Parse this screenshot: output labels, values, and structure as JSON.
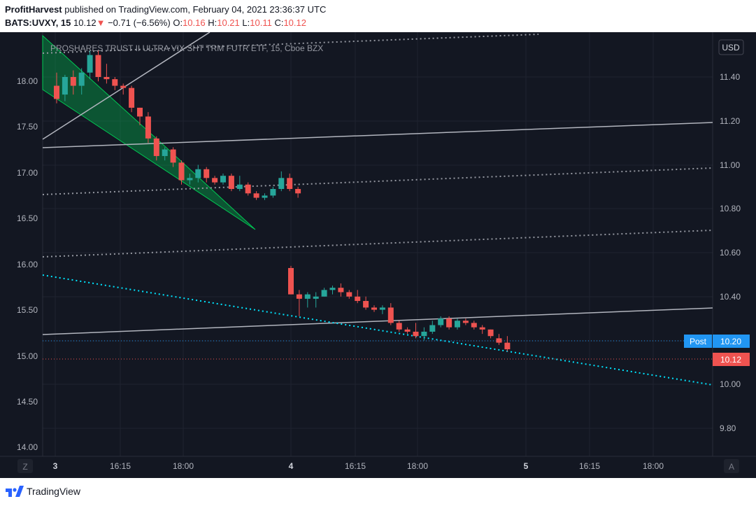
{
  "header": {
    "author": "ProfitHarvest",
    "published_text": "published on TradingView.com, February 04, 2021 23:36:37 UTC",
    "symbol": "BATS:UVXY, 15",
    "last": "10.12",
    "arrow": "▼",
    "change": "−0.71 (−6.56%)",
    "o_label": "O:",
    "o_val": "10.16",
    "h_label": "H:",
    "h_val": "10.21",
    "l_label": "L:",
    "l_val": "10.11",
    "c_label": "C:",
    "c_val": "10.12"
  },
  "chart_title": "PROSHARES TRUST II ULTRA VIX SHT TRM FUTR ETF, 15, Cboe BZX",
  "currency_button": "USD",
  "footer": {
    "brand": "TradingView"
  },
  "left_axis": {
    "ticks": [
      "18.00",
      "17.50",
      "17.00",
      "16.50",
      "16.00",
      "15.50",
      "15.00",
      "14.50",
      "14.00"
    ]
  },
  "right_axis": {
    "ticks": [
      "11.40",
      "11.20",
      "11.00",
      "10.80",
      "10.60",
      "10.40",
      "10.20",
      "10.00",
      "9.80"
    ]
  },
  "time_axis": {
    "ticks": [
      "3",
      "16:15",
      "18:00",
      "4",
      "16:15",
      "18:00",
      "5",
      "16:15",
      "18:00"
    ]
  },
  "corner_left": "Z",
  "corner_right": "A",
  "price_labels": {
    "post_tag": "Post",
    "post_value": "10.20",
    "last_value": "10.12"
  },
  "colors": {
    "up": "#26a69a",
    "down": "#ef5350",
    "bg": "#131722",
    "grid": "#1f2330",
    "axis_text": "#b2b5be",
    "trend": "#b2b5be",
    "cyan": "#00e5ff",
    "channel": "#00c853",
    "post": "#2196f3"
  },
  "chart_data": {
    "type": "candlestick",
    "title": "PROSHARES TRUST II ULTRA VIX SHT TRM FUTR ETF, 15, Cboe BZX",
    "symbol": "BATS:UVXY",
    "interval": "15",
    "price_scale_right": [
      9.75,
      11.5
    ],
    "price_scale_left": [
      13.9,
      18.3
    ],
    "candles": [
      [
        11.36,
        11.42,
        11.28,
        11.3
      ],
      [
        11.32,
        11.41,
        11.29,
        11.4
      ],
      [
        11.4,
        11.43,
        11.32,
        11.36
      ],
      [
        11.36,
        11.44,
        11.32,
        11.42
      ],
      [
        11.42,
        11.52,
        11.39,
        11.5
      ],
      [
        11.5,
        11.52,
        11.38,
        11.4
      ],
      [
        11.4,
        11.46,
        11.37,
        11.39
      ],
      [
        11.39,
        11.4,
        11.34,
        11.36
      ],
      [
        11.36,
        11.37,
        11.32,
        11.35
      ],
      [
        11.35,
        11.36,
        11.24,
        11.26
      ],
      [
        11.26,
        11.26,
        11.18,
        11.22
      ],
      [
        11.22,
        11.24,
        11.1,
        11.12
      ],
      [
        11.12,
        11.13,
        11.02,
        11.04
      ],
      [
        11.04,
        11.08,
        11.02,
        11.07
      ],
      [
        11.07,
        11.08,
        10.99,
        11.01
      ],
      [
        11.01,
        11.02,
        10.91,
        10.93
      ],
      [
        10.93,
        10.96,
        10.91,
        10.94
      ],
      [
        10.94,
        11.0,
        10.92,
        10.98
      ],
      [
        10.98,
        10.99,
        10.92,
        10.94
      ],
      [
        10.94,
        10.95,
        10.91,
        10.92
      ],
      [
        10.92,
        10.96,
        10.91,
        10.95
      ],
      [
        10.95,
        10.96,
        10.88,
        10.89
      ],
      [
        10.89,
        10.95,
        10.88,
        10.91
      ],
      [
        10.91,
        10.92,
        10.86,
        10.87
      ],
      [
        10.87,
        10.88,
        10.84,
        10.85
      ],
      [
        10.85,
        10.87,
        10.84,
        10.86
      ],
      [
        10.86,
        10.9,
        10.85,
        10.89
      ],
      [
        10.89,
        10.97,
        10.88,
        10.94
      ],
      [
        10.94,
        10.96,
        10.88,
        10.89
      ],
      [
        10.89,
        10.9,
        10.85,
        10.87
      ],
      [
        10.53,
        10.54,
        10.41,
        10.41
      ],
      [
        10.41,
        10.43,
        10.31,
        10.39
      ],
      [
        10.39,
        10.42,
        10.35,
        10.41
      ],
      [
        10.39,
        10.42,
        10.35,
        10.4
      ],
      [
        10.4,
        10.44,
        10.4,
        10.43
      ],
      [
        10.43,
        10.45,
        10.41,
        10.44
      ],
      [
        10.44,
        10.46,
        10.4,
        10.42
      ],
      [
        10.42,
        10.43,
        10.39,
        10.4
      ],
      [
        10.4,
        10.43,
        10.37,
        10.38
      ],
      [
        10.38,
        10.4,
        10.34,
        10.35
      ],
      [
        10.35,
        10.36,
        10.33,
        10.34
      ],
      [
        10.34,
        10.36,
        10.32,
        10.35
      ],
      [
        10.35,
        10.37,
        10.27,
        10.28
      ],
      [
        10.28,
        10.29,
        10.24,
        10.25
      ],
      [
        10.25,
        10.26,
        10.23,
        10.24
      ],
      [
        10.24,
        10.28,
        10.21,
        10.22
      ],
      [
        10.22,
        10.26,
        10.2,
        10.24
      ],
      [
        10.24,
        10.29,
        10.23,
        10.27
      ],
      [
        10.27,
        10.31,
        10.26,
        10.3
      ],
      [
        10.3,
        10.31,
        10.25,
        10.26
      ],
      [
        10.26,
        10.3,
        10.25,
        10.29
      ],
      [
        10.29,
        10.3,
        10.27,
        10.28
      ],
      [
        10.28,
        10.29,
        10.25,
        10.26
      ],
      [
        10.26,
        10.27,
        10.23,
        10.25
      ],
      [
        10.25,
        10.25,
        10.21,
        10.22
      ],
      [
        10.21,
        10.23,
        10.18,
        10.19
      ],
      [
        10.19,
        10.22,
        10.15,
        10.16
      ]
    ],
    "last_price": 10.12,
    "post_price": 10.2,
    "xlabel": "",
    "ylabel": ""
  }
}
